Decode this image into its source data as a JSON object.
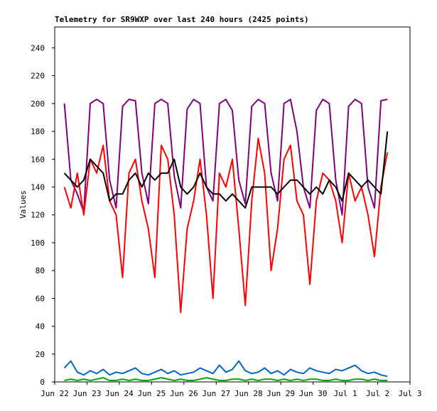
{
  "chart_data": {
    "type": "line",
    "title": "Telemetry for SR9WXP over last 240 hours (2425 points)",
    "y_label": "Values",
    "xlim": [
      0,
      11
    ],
    "xticks": [
      {
        "value": 0,
        "label": "Jun 22"
      },
      {
        "value": 1,
        "label": "Jun 23"
      },
      {
        "value": 2,
        "label": "Jun 24"
      },
      {
        "value": 3,
        "label": "Jun 25"
      },
      {
        "value": 4,
        "label": "Jun 26"
      },
      {
        "value": 5,
        "label": "Jun 27"
      },
      {
        "value": 6,
        "label": "Jun 28"
      },
      {
        "value": 7,
        "label": "Jun 29"
      },
      {
        "value": 8,
        "label": "Jun 30"
      },
      {
        "value": 9,
        "label": "Jul 1"
      },
      {
        "value": 10,
        "label": "Jul 2"
      },
      {
        "value": 11,
        "label": "Jul 3"
      }
    ],
    "ylim": [
      0,
      255
    ],
    "yticks": [
      0,
      20,
      40,
      60,
      80,
      100,
      120,
      140,
      160,
      180,
      200,
      220,
      240
    ],
    "x": [
      0.3,
      0.5,
      0.7,
      0.9,
      1.1,
      1.3,
      1.5,
      1.7,
      1.9,
      2.1,
      2.3,
      2.5,
      2.7,
      2.9,
      3.1,
      3.3,
      3.5,
      3.7,
      3.9,
      4.1,
      4.3,
      4.5,
      4.7,
      4.9,
      5.1,
      5.3,
      5.5,
      5.7,
      5.9,
      6.1,
      6.3,
      6.5,
      6.7,
      6.9,
      7.1,
      7.3,
      7.5,
      7.7,
      7.9,
      8.1,
      8.3,
      8.5,
      8.7,
      8.9,
      9.1,
      9.3,
      9.5,
      9.7,
      9.9,
      10.1,
      10.3
    ],
    "series": [
      {
        "color": "#800080",
        "values": [
          200,
          145,
          135,
          122,
          200,
          203,
          200,
          145,
          125,
          198,
          203,
          202,
          150,
          128,
          200,
          203,
          200,
          148,
          125,
          196,
          203,
          200,
          140,
          130,
          200,
          203,
          195,
          145,
          128,
          198,
          203,
          200,
          150,
          130,
          200,
          203,
          180,
          140,
          125,
          195,
          203,
          200,
          145,
          120,
          198,
          203,
          200,
          140,
          125,
          202,
          203
        ]
      },
      {
        "color": "#ff0000",
        "values": [
          140,
          125,
          150,
          120,
          160,
          150,
          170,
          130,
          120,
          75,
          150,
          160,
          130,
          110,
          75,
          170,
          160,
          120,
          50,
          110,
          130,
          160,
          120,
          60,
          150,
          140,
          160,
          110,
          55,
          130,
          175,
          150,
          80,
          110,
          160,
          170,
          130,
          120,
          70,
          130,
          150,
          145,
          130,
          100,
          150,
          130,
          140,
          120,
          90,
          140,
          165
        ]
      },
      {
        "color": "#000000",
        "values": [
          150,
          145,
          140,
          145,
          160,
          155,
          150,
          130,
          135,
          135,
          145,
          150,
          140,
          150,
          145,
          150,
          150,
          160,
          140,
          135,
          140,
          150,
          140,
          135,
          135,
          130,
          135,
          130,
          125,
          140,
          140,
          140,
          140,
          135,
          140,
          145,
          145,
          140,
          135,
          140,
          135,
          145,
          140,
          130,
          150,
          145,
          140,
          145,
          140,
          135,
          180
        ]
      },
      {
        "color": "#0066cc",
        "values": [
          10,
          15,
          7,
          5,
          8,
          6,
          9,
          5,
          7,
          6,
          8,
          10,
          6,
          5,
          7,
          9,
          6,
          8,
          5,
          6,
          7,
          10,
          8,
          6,
          12,
          7,
          9,
          15,
          8,
          6,
          7,
          10,
          6,
          8,
          5,
          9,
          7,
          6,
          10,
          8,
          7,
          6,
          9,
          8,
          10,
          12,
          8,
          6,
          7,
          5,
          4
        ]
      },
      {
        "color": "#00aa00",
        "values": [
          1,
          2,
          1,
          2,
          1,
          2,
          3,
          1,
          1,
          2,
          1,
          2,
          1,
          1,
          2,
          3,
          2,
          1,
          2,
          1,
          1,
          2,
          3,
          2,
          1,
          1,
          2,
          2,
          1,
          2,
          1,
          2,
          2,
          1,
          2,
          1,
          2,
          1,
          2,
          2,
          1,
          1,
          2,
          1,
          1,
          2,
          2,
          1,
          2,
          1,
          1
        ]
      }
    ]
  }
}
